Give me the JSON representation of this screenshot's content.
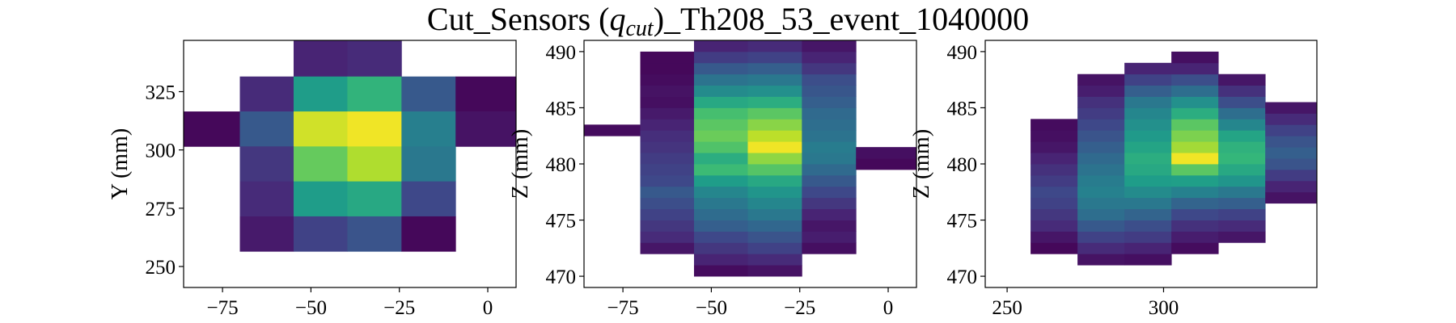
{
  "figure": {
    "title_prefix": "Cut_Sensors (",
    "title_math": "q",
    "title_sub": "cut",
    "title_suffix": ")_Th208_53_event_1040000"
  },
  "colormap": [
    "#440154",
    "#482878",
    "#3e4989",
    "#31688e",
    "#26828e",
    "#1f9e89",
    "#35b779",
    "#6ece58",
    "#b5de2b",
    "#fde725"
  ],
  "chart_data": [
    {
      "type": "heatmap",
      "id": "xy",
      "xlabel": "",
      "ylabel": "Y (mm)",
      "xlim": [
        -86,
        8
      ],
      "ylim": [
        241,
        347
      ],
      "xticks": [
        -75,
        -50,
        -25,
        0
      ],
      "yticks": [
        250,
        275,
        300,
        325
      ],
      "xtick_labels": [
        "−75",
        "−50",
        "−25",
        "0"
      ],
      "ytick_labels": [
        "250",
        "275",
        "300",
        "325"
      ],
      "cells": [
        {
          "x0": -54.9,
          "x1": -39.7,
          "y0": 331.5,
          "y1": 347.0,
          "v": 0.1
        },
        {
          "x0": -39.7,
          "x1": -24.4,
          "y0": 331.5,
          "y1": 347.0,
          "v": 0.12
        },
        {
          "x0": -70.1,
          "x1": -54.9,
          "y0": 316.5,
          "y1": 331.5,
          "v": 0.12
        },
        {
          "x0": -54.9,
          "x1": -39.7,
          "y0": 316.5,
          "y1": 331.5,
          "v": 0.55
        },
        {
          "x0": -39.7,
          "x1": -24.4,
          "y0": 316.5,
          "y1": 331.5,
          "v": 0.65
        },
        {
          "x0": -24.4,
          "x1": -9.1,
          "y0": 316.5,
          "y1": 331.5,
          "v": 0.28
        },
        {
          "x0": -9.1,
          "x1": 8.0,
          "y0": 316.5,
          "y1": 331.5,
          "v": 0.02
        },
        {
          "x0": -86.0,
          "x1": -70.1,
          "y0": 301.5,
          "y1": 316.5,
          "v": 0.02
        },
        {
          "x0": -70.1,
          "x1": -54.9,
          "y0": 301.5,
          "y1": 316.5,
          "v": 0.28
        },
        {
          "x0": -54.9,
          "x1": -39.7,
          "y0": 301.5,
          "y1": 316.5,
          "v": 0.93
        },
        {
          "x0": -39.7,
          "x1": -24.4,
          "y0": 301.5,
          "y1": 316.5,
          "v": 0.98
        },
        {
          "x0": -24.4,
          "x1": -9.1,
          "y0": 301.5,
          "y1": 316.5,
          "v": 0.43
        },
        {
          "x0": -9.1,
          "x1": 8.0,
          "y0": 301.5,
          "y1": 316.5,
          "v": 0.05
        },
        {
          "x0": -70.1,
          "x1": -54.9,
          "y0": 286.5,
          "y1": 301.5,
          "v": 0.16
        },
        {
          "x0": -54.9,
          "x1": -39.7,
          "y0": 286.5,
          "y1": 301.5,
          "v": 0.76
        },
        {
          "x0": -39.7,
          "x1": -24.4,
          "y0": 286.5,
          "y1": 301.5,
          "v": 0.88
        },
        {
          "x0": -24.4,
          "x1": -9.1,
          "y0": 286.5,
          "y1": 301.5,
          "v": 0.4
        },
        {
          "x0": -70.1,
          "x1": -54.9,
          "y0": 271.5,
          "y1": 286.5,
          "v": 0.12
        },
        {
          "x0": -54.9,
          "x1": -39.7,
          "y0": 271.5,
          "y1": 286.5,
          "v": 0.55
        },
        {
          "x0": -39.7,
          "x1": -24.4,
          "y0": 271.5,
          "y1": 286.5,
          "v": 0.6
        },
        {
          "x0": -24.4,
          "x1": -9.1,
          "y0": 271.5,
          "y1": 286.5,
          "v": 0.22
        },
        {
          "x0": -70.1,
          "x1": -54.9,
          "y0": 256.5,
          "y1": 271.5,
          "v": 0.07
        },
        {
          "x0": -54.9,
          "x1": -39.7,
          "y0": 256.5,
          "y1": 271.5,
          "v": 0.2
        },
        {
          "x0": -39.7,
          "x1": -24.4,
          "y0": 256.5,
          "y1": 271.5,
          "v": 0.26
        },
        {
          "x0": -24.4,
          "x1": -9.1,
          "y0": 256.5,
          "y1": 271.5,
          "v": 0.02
        }
      ]
    },
    {
      "type": "heatmap",
      "id": "xz",
      "xlabel": "",
      "ylabel": "Z (mm)",
      "xlim": [
        -86,
        8
      ],
      "ylim": [
        469,
        491
      ],
      "xticks": [
        -75,
        -50,
        -25,
        0
      ],
      "yticks": [
        470,
        475,
        480,
        485,
        490
      ],
      "xtick_labels": [
        "−75",
        "−50",
        "−25",
        "0"
      ],
      "ytick_labels": [
        "470",
        "475",
        "480",
        "485",
        "490"
      ],
      "columns": [
        {
          "x0": -86.0,
          "x1": -70.1,
          "z0": 482.5,
          "values": [
            0.03
          ]
        },
        {
          "x0": -70.1,
          "x1": -54.9,
          "z0": 472.0,
          "values": [
            0.06,
            0.12,
            0.16,
            0.2,
            0.24,
            0.28,
            0.22,
            0.2,
            0.18,
            0.15,
            0.13,
            0.1,
            0.07,
            0.04,
            0.05,
            0.03,
            0.02,
            0.02
          ]
        },
        {
          "x0": -54.9,
          "x1": -39.7,
          "z0": 470.0,
          "values": [
            0.03,
            0.1,
            0.16,
            0.22,
            0.3,
            0.35,
            0.4,
            0.46,
            0.55,
            0.68,
            0.62,
            0.72,
            0.77,
            0.74,
            0.7,
            0.6,
            0.48,
            0.38,
            0.28,
            0.18,
            0.1,
            0.04
          ]
        },
        {
          "x0": -39.7,
          "x1": -24.4,
          "z0": 470.0,
          "values": [
            0.05,
            0.12,
            0.2,
            0.26,
            0.33,
            0.4,
            0.46,
            0.52,
            0.6,
            0.73,
            0.83,
            0.98,
            0.9,
            0.82,
            0.74,
            0.62,
            0.5,
            0.4,
            0.3,
            0.2,
            0.12,
            0.08
          ]
        },
        {
          "x0": -24.4,
          "x1": -9.1,
          "z0": 472.0,
          "values": [
            0.04,
            0.08,
            0.06,
            0.1,
            0.16,
            0.22,
            0.28,
            0.34,
            0.4,
            0.42,
            0.38,
            0.36,
            0.34,
            0.3,
            0.27,
            0.24,
            0.16,
            0.1,
            0.06
          ]
        },
        {
          "x0": -9.1,
          "x1": 8.0,
          "z0": 479.5,
          "values": [
            0.02,
            0.04
          ]
        }
      ],
      "bin_height": 1.0
    },
    {
      "type": "heatmap",
      "id": "yz",
      "xlabel": "",
      "ylabel": "Z (mm)",
      "xlim": [
        243,
        349
      ],
      "ylim": [
        469,
        491
      ],
      "xticks": [
        250,
        300
      ],
      "yticks": [
        470,
        475,
        480,
        485,
        490
      ],
      "xtick_labels": [
        "250",
        "300"
      ],
      "ytick_labels": [
        "470",
        "475",
        "480",
        "485",
        "490"
      ],
      "columns": [
        {
          "x0": 257.5,
          "x1": 272.5,
          "z0": 472.0,
          "values": [
            0.02,
            0.06,
            0.12,
            0.16,
            0.2,
            0.22,
            0.18,
            0.14,
            0.1,
            0.06,
            0.04,
            0.03
          ]
        },
        {
          "x0": 272.5,
          "x1": 287.5,
          "z0": 471.0,
          "values": [
            0.05,
            0.12,
            0.2,
            0.28,
            0.36,
            0.4,
            0.44,
            0.42,
            0.38,
            0.34,
            0.3,
            0.26,
            0.22,
            0.18,
            0.14,
            0.08,
            0.05
          ]
        },
        {
          "x0": 287.5,
          "x1": 302.5,
          "z0": 471.0,
          "values": [
            0.04,
            0.1,
            0.18,
            0.24,
            0.32,
            0.4,
            0.48,
            0.55,
            0.6,
            0.62,
            0.58,
            0.54,
            0.5,
            0.46,
            0.4,
            0.3,
            0.2,
            0.1
          ]
        },
        {
          "x0": 302.5,
          "x1": 317.5,
          "z0": 472.0,
          "values": [
            0.03,
            0.08,
            0.14,
            0.22,
            0.32,
            0.44,
            0.56,
            0.74,
            0.98,
            0.86,
            0.8,
            0.74,
            0.62,
            0.5,
            0.36,
            0.24,
            0.1,
            0.04
          ]
        },
        {
          "x0": 317.5,
          "x1": 332.5,
          "z0": 473.0,
          "values": [
            0.06,
            0.12,
            0.2,
            0.3,
            0.4,
            0.52,
            0.6,
            0.66,
            0.64,
            0.58,
            0.46,
            0.36,
            0.24,
            0.14,
            0.06
          ]
        },
        {
          "x0": 332.5,
          "x1": 349.0,
          "z0": 476.5,
          "values": [
            0.05,
            0.1,
            0.18,
            0.26,
            0.3,
            0.26,
            0.2,
            0.12,
            0.06
          ]
        }
      ],
      "bin_height": 1.0
    }
  ]
}
